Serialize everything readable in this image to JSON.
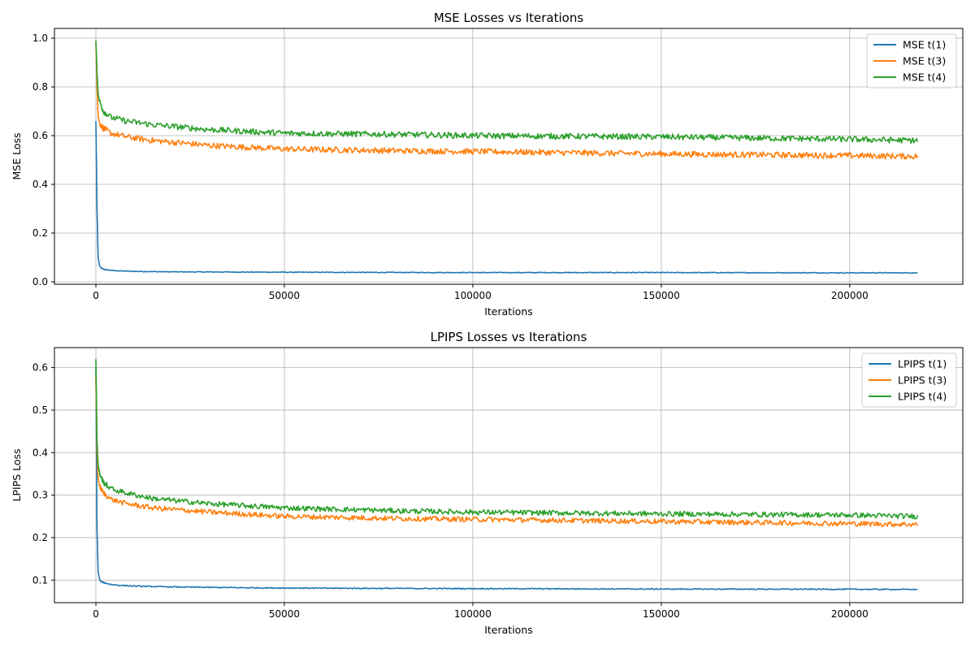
{
  "chart_data": [
    {
      "type": "line",
      "title": "MSE Losses vs Iterations",
      "xlabel": "Iterations",
      "ylabel": "MSE Loss",
      "xlim": [
        -11000,
        230000
      ],
      "ylim": [
        -0.01,
        1.04
      ],
      "xticks": [
        0,
        50000,
        100000,
        150000,
        200000
      ],
      "xtick_labels": [
        "0",
        "50000",
        "100000",
        "150000",
        "200000"
      ],
      "yticks": [
        0.0,
        0.2,
        0.4,
        0.6,
        0.8,
        1.0
      ],
      "ytick_labels": [
        "0.0",
        "0.2",
        "0.4",
        "0.6",
        "0.8",
        "1.0"
      ],
      "grid": true,
      "legend_position": "top-right",
      "series": [
        {
          "name": "MSE t(1)",
          "color": "#1f77b4",
          "noise": 0.0015,
          "x": [
            0,
            300,
            600,
            1000,
            1500,
            2500,
            4000,
            6000,
            10000,
            20000,
            40000,
            60000,
            100000,
            150000,
            200000,
            218000
          ],
          "y": [
            0.66,
            0.3,
            0.1,
            0.065,
            0.055,
            0.05,
            0.047,
            0.045,
            0.043,
            0.041,
            0.04,
            0.039,
            0.038,
            0.038,
            0.037,
            0.037
          ]
        },
        {
          "name": "MSE t(3)",
          "color": "#ff7f0e",
          "noise": 0.012,
          "x": [
            0,
            300,
            600,
            1000,
            2000,
            4000,
            8000,
            15000,
            30000,
            50000,
            80000,
            100000,
            150000,
            200000,
            218000
          ],
          "y": [
            0.98,
            0.8,
            0.68,
            0.65,
            0.63,
            0.61,
            0.595,
            0.58,
            0.56,
            0.545,
            0.538,
            0.535,
            0.525,
            0.518,
            0.515
          ]
        },
        {
          "name": "MSE t(4)",
          "color": "#2ca02c",
          "noise": 0.012,
          "x": [
            0,
            300,
            600,
            1000,
            2000,
            4000,
            8000,
            15000,
            30000,
            50000,
            80000,
            100000,
            150000,
            200000,
            218000
          ],
          "y": [
            0.99,
            0.86,
            0.77,
            0.74,
            0.7,
            0.675,
            0.66,
            0.645,
            0.625,
            0.61,
            0.605,
            0.6,
            0.595,
            0.585,
            0.58
          ]
        }
      ]
    },
    {
      "type": "line",
      "title": "LPIPS Losses vs Iterations",
      "xlabel": "Iterations",
      "ylabel": "LPIPS Loss",
      "xlim": [
        -11000,
        230000
      ],
      "ylim": [
        0.047,
        0.647
      ],
      "xticks": [
        0,
        50000,
        100000,
        150000,
        200000
      ],
      "xtick_labels": [
        "0",
        "50000",
        "100000",
        "150000",
        "200000"
      ],
      "yticks": [
        0.1,
        0.2,
        0.3,
        0.4,
        0.5,
        0.6
      ],
      "ytick_labels": [
        "0.1",
        "0.2",
        "0.3",
        "0.4",
        "0.5",
        "0.6"
      ],
      "grid": true,
      "legend_position": "top-right",
      "series": [
        {
          "name": "LPIPS t(1)",
          "color": "#1f77b4",
          "noise": 0.0012,
          "x": [
            0,
            300,
            600,
            1000,
            1500,
            2500,
            4000,
            6000,
            10000,
            20000,
            40000,
            60000,
            100000,
            150000,
            200000,
            218000
          ],
          "y": [
            0.6,
            0.22,
            0.12,
            0.1,
            0.096,
            0.093,
            0.09,
            0.088,
            0.086,
            0.084,
            0.082,
            0.081,
            0.08,
            0.079,
            0.0785,
            0.078
          ]
        },
        {
          "name": "LPIPS t(3)",
          "color": "#ff7f0e",
          "noise": 0.006,
          "x": [
            0,
            300,
            600,
            1000,
            2000,
            4000,
            8000,
            15000,
            30000,
            50000,
            80000,
            100000,
            150000,
            200000,
            218000
          ],
          "y": [
            0.58,
            0.4,
            0.34,
            0.32,
            0.305,
            0.29,
            0.28,
            0.27,
            0.26,
            0.25,
            0.245,
            0.243,
            0.238,
            0.233,
            0.231
          ]
        },
        {
          "name": "LPIPS t(4)",
          "color": "#2ca02c",
          "noise": 0.006,
          "x": [
            0,
            300,
            600,
            1000,
            2000,
            4000,
            8000,
            15000,
            30000,
            50000,
            80000,
            100000,
            150000,
            200000,
            218000
          ],
          "y": [
            0.62,
            0.43,
            0.37,
            0.35,
            0.33,
            0.315,
            0.305,
            0.292,
            0.28,
            0.27,
            0.263,
            0.26,
            0.256,
            0.253,
            0.25
          ]
        }
      ]
    }
  ]
}
